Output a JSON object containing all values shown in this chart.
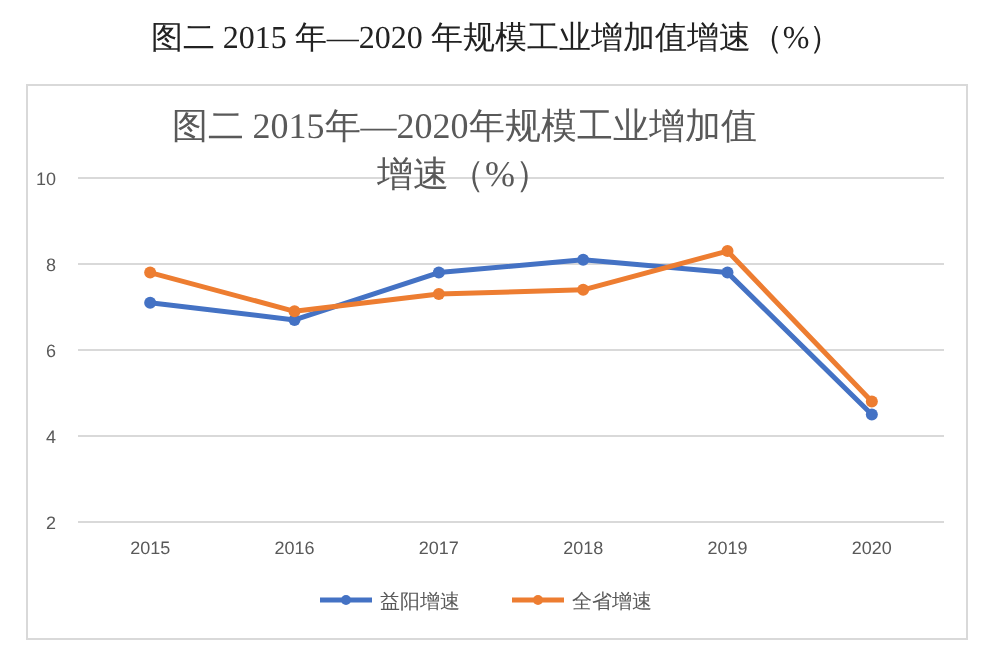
{
  "chart_data": {
    "type": "line",
    "title": "图二 2015年—2020年规模工业增加值增速（%）",
    "annotations": [
      "图二 2015 年—2020 年规模工业增加值增速（%）"
    ],
    "categories": [
      "2015",
      "2016",
      "2017",
      "2018",
      "2019",
      "2020"
    ],
    "series": [
      {
        "name": "益阳增速",
        "color": "#4472c4",
        "values": [
          7.1,
          6.7,
          7.8,
          8.1,
          7.8,
          4.5
        ]
      },
      {
        "name": "全省增速",
        "color": "#ed7d31",
        "values": [
          7.8,
          6.9,
          7.3,
          7.4,
          8.3,
          4.8
        ]
      }
    ],
    "ylim": [
      2,
      10
    ],
    "yticks": [
      2,
      4,
      6,
      8,
      10
    ],
    "grid": "y",
    "legend": "bottom",
    "marker": "circle",
    "line_style": "solid"
  }
}
